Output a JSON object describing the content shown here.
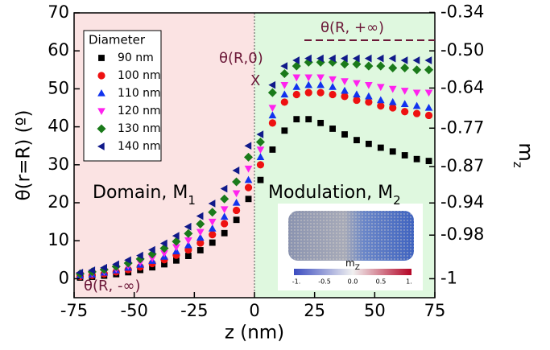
{
  "chart_data": {
    "type": "scatter",
    "x": [
      -72.5,
      -67.5,
      -62.5,
      -57.5,
      -52.5,
      -47.5,
      -42.5,
      -37.5,
      -32.5,
      -27.5,
      -22.5,
      -17.5,
      -12.5,
      -7.5,
      -2.5,
      2.5,
      7.5,
      12.5,
      17.5,
      22.5,
      27.5,
      32.5,
      37.5,
      42.5,
      47.5,
      52.5,
      57.5,
      62.5,
      67.5,
      72.5
    ],
    "series": [
      {
        "name": "90 nm",
        "color": "#000000",
        "marker": "square",
        "values": [
          0.3,
          0.5,
          0.8,
          1.2,
          1.7,
          2.3,
          3,
          3.8,
          4.8,
          6,
          7.5,
          9.5,
          12,
          15.5,
          21,
          26,
          34,
          39,
          42,
          42,
          41,
          39.5,
          38,
          36.5,
          35.5,
          34.5,
          33.5,
          32.5,
          31.5,
          31
        ]
      },
      {
        "name": "100 nm",
        "color": "#ee1111",
        "marker": "circle",
        "values": [
          0.6,
          0.9,
          1.3,
          1.8,
          2.4,
          3.1,
          4,
          5,
          6.2,
          7.6,
          9.4,
          11.6,
          14.5,
          18,
          24,
          30,
          41,
          46.5,
          48.5,
          49,
          49,
          48.5,
          48,
          47,
          46.5,
          45.5,
          45,
          44,
          43.5,
          43
        ]
      },
      {
        "name": "110 nm",
        "color": "#1133ee",
        "marker": "triangle-up",
        "values": [
          0.8,
          1.1,
          1.6,
          2.2,
          2.9,
          3.7,
          4.7,
          5.8,
          7.2,
          8.8,
          10.8,
          13.2,
          16.3,
          20,
          26,
          32,
          43,
          48.5,
          50.5,
          51,
          51,
          50.5,
          49.5,
          48.5,
          48,
          47,
          46.5,
          46,
          45.5,
          45
        ]
      },
      {
        "name": "120 nm",
        "color": "#ff22ee",
        "marker": "triangle-down",
        "values": [
          1,
          1.4,
          1.9,
          2.6,
          3.4,
          4.3,
          5.4,
          6.7,
          8.3,
          10.1,
          12.3,
          15,
          18.3,
          22.5,
          29,
          34,
          45,
          51,
          53,
          53,
          53,
          52.5,
          52,
          51.5,
          51,
          50.5,
          50,
          49.5,
          49,
          49
        ]
      },
      {
        "name": "130 nm",
        "color": "#1a7a1a",
        "marker": "diamond",
        "values": [
          1.3,
          1.8,
          2.4,
          3.2,
          4.1,
          5.2,
          6.5,
          8,
          9.8,
          11.9,
          14.4,
          17.5,
          21,
          25.5,
          32,
          36,
          49,
          54,
          56,
          57,
          57,
          57,
          56.5,
          56.5,
          56,
          56,
          55.5,
          55.5,
          55,
          55
        ]
      },
      {
        "name": "140 nm",
        "color": "#101a8a",
        "marker": "triangle-left",
        "values": [
          1.6,
          2.2,
          2.9,
          3.8,
          4.9,
          6.1,
          7.6,
          9.3,
          11.3,
          13.7,
          16.5,
          19.8,
          23.7,
          28.5,
          35,
          38,
          51,
          56,
          57.5,
          58,
          58,
          58,
          58,
          58,
          58,
          58,
          58,
          57.5,
          57.5,
          57.5
        ]
      }
    ],
    "legend_title": "Diameter",
    "xlabel": "z (nm)",
    "ylabel": "θ(r=R) (º)",
    "y2label": {
      "main": "m",
      "sub": "z"
    },
    "xlim": [
      -75,
      75
    ],
    "xticks": [
      -75,
      -50,
      -25,
      0,
      25,
      50,
      75
    ],
    "ylim": [
      -5,
      70
    ],
    "yticks": [
      0,
      10,
      20,
      30,
      40,
      50,
      60,
      70
    ],
    "y2scale": "negative-cosine",
    "y2ticks": [
      -0.34,
      {
        "value": -0.5,
        "label": "-0.50"
      },
      -0.64,
      -0.77,
      -0.87,
      -0.94,
      -0.98,
      -1
    ],
    "grid": false,
    "region_colors": [
      "#fbe3e3",
      "#dff8df"
    ],
    "annotations": {
      "domain": {
        "main": "Domain, M",
        "sub": "1"
      },
      "modulation": {
        "main": "Modulation, M",
        "sub": "2"
      },
      "theta_zero": "θ(R,0)",
      "cross": "X",
      "theta_plus_inf": "θ(R, +∞)",
      "theta_minus_inf": "θ(R, -∞)"
    },
    "inset": {
      "label": {
        "main": "m",
        "sub": "Z"
      },
      "ticks": [
        "-1.",
        "-0.5",
        "0.0",
        "0.5",
        "1."
      ]
    }
  }
}
